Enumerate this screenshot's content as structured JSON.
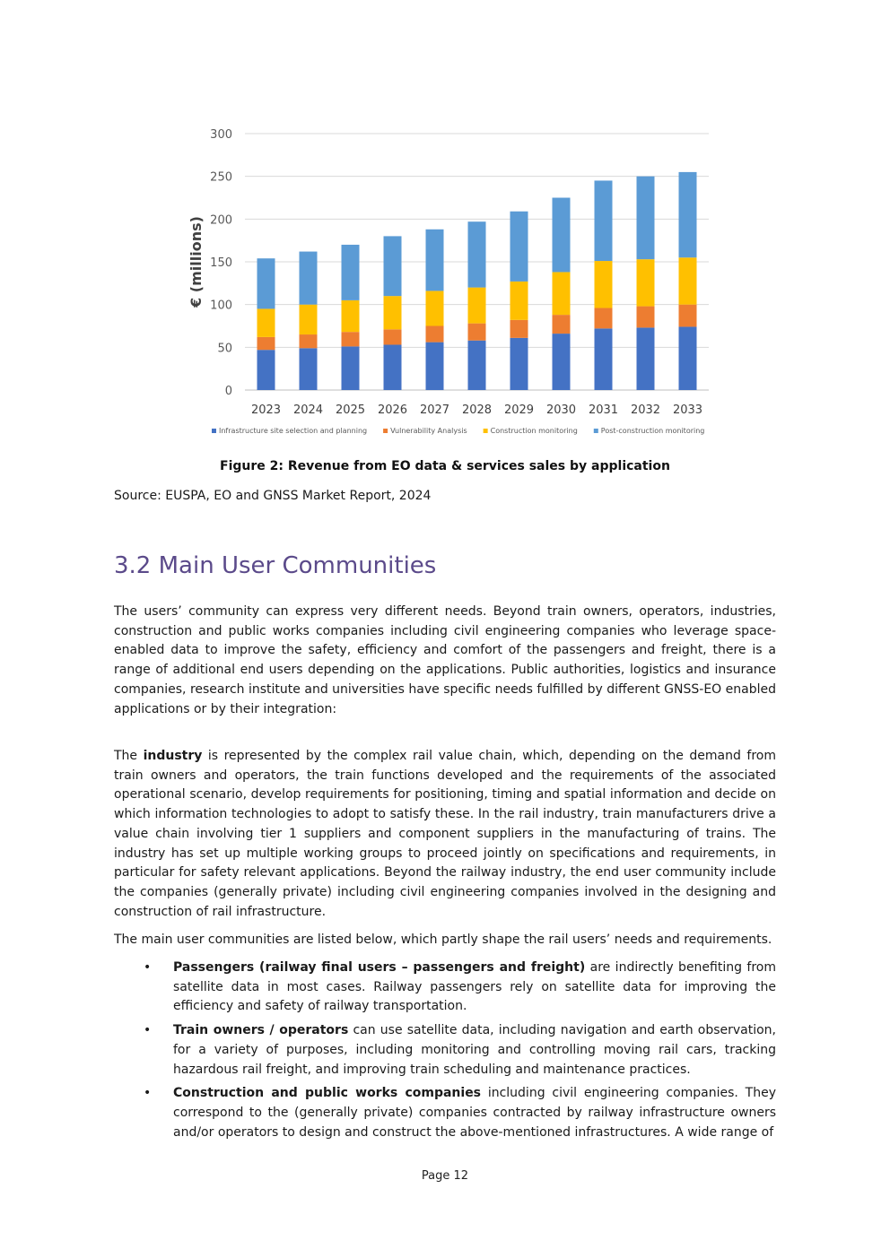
{
  "chart_data": {
    "type": "bar",
    "stacked": true,
    "categories": [
      "2023",
      "2024",
      "2025",
      "2026",
      "2027",
      "2028",
      "2029",
      "2030",
      "2031",
      "2032",
      "2033"
    ],
    "series": [
      {
        "name": "Infrastructure site selection and planning",
        "color": "#4472c4",
        "values": [
          47,
          49,
          51,
          53,
          56,
          58,
          61,
          66,
          72,
          73,
          74
        ]
      },
      {
        "name": "Vulnerability Analysis",
        "color": "#ed7d31",
        "values": [
          15,
          16,
          17,
          18,
          19,
          20,
          21,
          22,
          24,
          25,
          26
        ]
      },
      {
        "name": "Construction monitoring",
        "color": "#ffc000",
        "values": [
          33,
          35,
          37,
          39,
          41,
          42,
          45,
          50,
          55,
          55,
          55
        ]
      },
      {
        "name": "Post-construction monitoring",
        "color": "#5b9bd5",
        "values": [
          59,
          62,
          65,
          70,
          72,
          77,
          82,
          87,
          94,
          97,
          100
        ]
      }
    ],
    "ylabel": "€ (millions)",
    "ylim": [
      0,
      300
    ],
    "yticks": [
      0,
      50,
      100,
      150,
      200,
      250,
      300
    ],
    "grid": true,
    "legend_position": "bottom"
  },
  "figure": {
    "caption": "Figure 2: Revenue from EO data & services sales by application",
    "source": "Source: EUSPA, EO and GNSS Market Report, 2024"
  },
  "section": {
    "heading": "3.2 Main User Communities"
  },
  "paragraphs": {
    "p1": "The users’ community can express very different needs. Beyond train owners, operators, industries, construction and public works companies including civil engineering companies who leverage space-enabled data to improve the safety, efficiency and comfort of the passengers and freight, there is a range of additional end users depending on the applications. Public authorities, logistics and insurance companies, research institute and universities have specific needs fulfilled by different GNSS-EO enabled applications or by their integration:",
    "p2_pre": "The ",
    "p2_bold": "industry",
    "p2_post": " is represented by the complex rail value chain, which, depending on the demand from train owners and operators, the train functions developed and the requirements of the associated operational scenario, develop requirements for positioning, timing and spatial information and decide on which information technologies to adopt to satisfy these. In the rail industry, train manufacturers drive a value chain involving tier 1 suppliers and component suppliers in the manufacturing of trains. The industry has set up multiple working groups to proceed jointly on specifications and requirements, in particular for safety relevant applications. Beyond the railway industry, the end user community include the companies (generally private) including civil engineering companies involved in the designing and construction of rail infrastructure.",
    "p3": "The main user communities are listed below, which partly shape the rail users’ needs and requirements."
  },
  "bullets": [
    {
      "bold": "Passengers (railway final users – passengers and freight)",
      "text": " are indirectly benefiting from satellite data in most cases. Railway passengers rely on satellite data for improving the efficiency and safety of railway transportation."
    },
    {
      "bold": "Train owners / operators",
      "text": " can use satellite data, including navigation and earth observation, for a variety of purposes, including monitoring and controlling moving rail cars, tracking hazardous rail freight, and improving train scheduling and maintenance practices."
    },
    {
      "bold": "Construction and public works companies",
      "text": " including civil engineering companies. They correspond to the (generally private) companies contracted by railway infrastructure owners and/or operators to design and construct the above-mentioned infrastructures. A wide range of"
    }
  ],
  "bullet_symbol": "•",
  "footer": {
    "page": "Page 12"
  }
}
